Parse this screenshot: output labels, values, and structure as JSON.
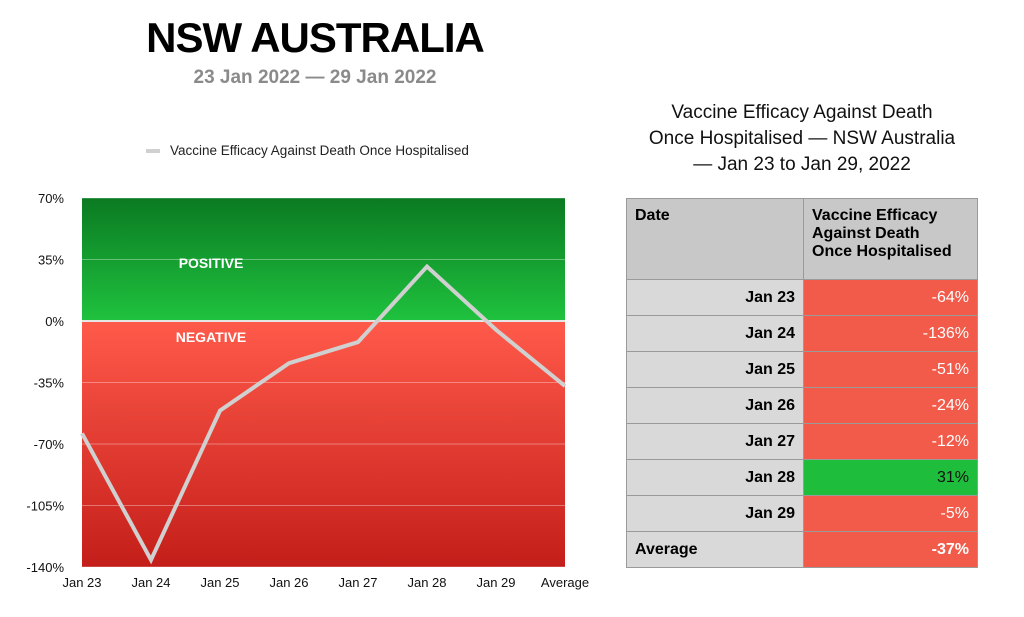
{
  "header": {
    "title": "NSW AUSTRALIA",
    "subtitle": "23 Jan 2022 — 29 Jan 2022"
  },
  "colors": {
    "positive_green": "#1fbd3c",
    "negative_red": "#f25a4a",
    "line": "#d0d0d0"
  },
  "chart_data": {
    "type": "line",
    "categories": [
      "Jan 23",
      "Jan 24",
      "Jan 25",
      "Jan 26",
      "Jan 27",
      "Jan 28",
      "Jan 29",
      "Average"
    ],
    "series": [
      {
        "name": "Vaccine Efficacy Against Death Once Hospitalised",
        "values": [
          -64,
          -136,
          -51,
          -24,
          -12,
          31,
          -5,
          -37
        ]
      }
    ],
    "ylim": [
      -140,
      70
    ],
    "yticks": [
      "70%",
      "35%",
      "0%",
      "-35%",
      "-70%",
      "-105%",
      "-140%"
    ],
    "ytick_values": [
      70,
      35,
      0,
      -35,
      -70,
      -105,
      -140
    ],
    "regions": [
      {
        "label": "POSITIVE",
        "from": 0,
        "to": 70
      },
      {
        "label": "NEGATIVE",
        "from": -140,
        "to": 0
      }
    ],
    "grid": true,
    "legend": "top"
  },
  "table": {
    "title": "Vaccine Efficacy Against Death Once Hospitalised — NSW Australia — Jan 23 to Jan 29, 2022",
    "title_lines": [
      "Vaccine Efficacy Against Death",
      "Once Hospitalised — NSW Australia",
      "— Jan 23 to Jan 29, 2022"
    ],
    "headers": [
      "Date",
      "Vaccine Efficacy Against Death Once Hospitalised"
    ],
    "header_lines": [
      "Vaccine Efficacy",
      "Against Death",
      "Once Hospitalised"
    ],
    "rows": [
      {
        "date": "Jan 23",
        "value": "-64%",
        "positive": false
      },
      {
        "date": "Jan 24",
        "value": "-136%",
        "positive": false
      },
      {
        "date": "Jan 25",
        "value": "-51%",
        "positive": false
      },
      {
        "date": "Jan 26",
        "value": "-24%",
        "positive": false
      },
      {
        "date": "Jan 27",
        "value": "-12%",
        "positive": false
      },
      {
        "date": "Jan 28",
        "value": "31%",
        "positive": true
      },
      {
        "date": "Jan 29",
        "value": "-5%",
        "positive": false
      }
    ],
    "average": {
      "date": "Average",
      "value": "-37%"
    }
  }
}
